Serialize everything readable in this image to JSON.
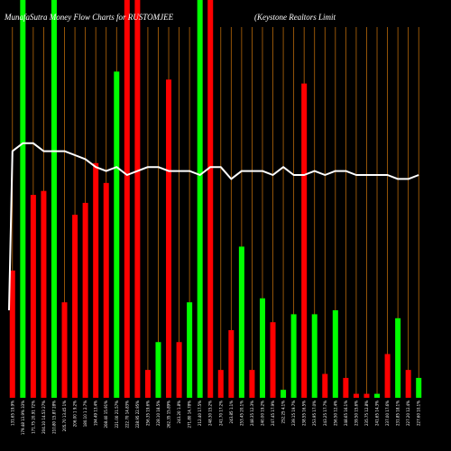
{
  "chart_data": {
    "type": "bar",
    "title": "MunafaSutra  Money Flow  Charts for RUSTOMJEE",
    "subtitle": "(Keystone   Realtors Limit",
    "ylim": [
      0,
      100
    ],
    "grid": "vertical",
    "line_series": {
      "name": "",
      "color": "#ffffff",
      "values": [
        62,
        64,
        64,
        62,
        62,
        62,
        61,
        60,
        58,
        57,
        58,
        56,
        57,
        58,
        58,
        57,
        57,
        57,
        56,
        58,
        58,
        55,
        57,
        57,
        57,
        56,
        58,
        56,
        56,
        57,
        56,
        57,
        57,
        56,
        56,
        56,
        56,
        55,
        55,
        56
      ]
    },
    "bars": [
      {
        "value": 32,
        "color": "red",
        "label": "131.65 19.9%"
      },
      {
        "value": 100,
        "color": "green",
        "label": "179.48 13.9% 33%"
      },
      {
        "value": 51,
        "color": "red",
        "label": "171.75 20.91 72%"
      },
      {
        "value": 52,
        "color": "red",
        "label": "204.10 14.53 27%"
      },
      {
        "value": 100,
        "color": "green",
        "label": "210.80 15.87 28%"
      },
      {
        "value": 24,
        "color": "red",
        "label": "205.70 13.45 1%"
      },
      {
        "value": 46,
        "color": "red",
        "label": "206.00 1 9.2%"
      },
      {
        "value": 49,
        "color": "red",
        "label": "180.10 1 2.7%"
      },
      {
        "value": 59,
        "color": "red",
        "label": "194.49 13.4%"
      },
      {
        "value": 54,
        "color": "red",
        "label": "208.40 15.91%"
      },
      {
        "value": 82,
        "color": "green",
        "label": "221.00 21.57%"
      },
      {
        "value": 100,
        "color": "red",
        "label": "222.70 14.83%"
      },
      {
        "value": 100,
        "color": "red",
        "label": "228.95 22.95%"
      },
      {
        "value": 7,
        "color": "red",
        "label": "256.35 19.6%"
      },
      {
        "value": 14,
        "color": "green",
        "label": "228.10 18.5%"
      },
      {
        "value": 80,
        "color": "red",
        "label": "262.35 15.89%"
      },
      {
        "value": 14,
        "color": "red",
        "label": "243.20 1.8%"
      },
      {
        "value": 24,
        "color": "green",
        "label": "271.80 14.78%"
      },
      {
        "value": 100,
        "color": "green",
        "label": "212.40 17.5%"
      },
      {
        "value": 100,
        "color": "red",
        "label": "248.30 15.2%"
      },
      {
        "value": 7,
        "color": "red",
        "label": "241.70 17.2%"
      },
      {
        "value": 17,
        "color": "red",
        "label": "243.85 1.1%"
      },
      {
        "value": 38,
        "color": "green",
        "label": "253.45 20.1%"
      },
      {
        "value": 7,
        "color": "red",
        "label": "248.35 12.3%"
      },
      {
        "value": 25,
        "color": "green",
        "label": "240.00 19.2%"
      },
      {
        "value": 19,
        "color": "red",
        "label": "247.45 17.9%"
      },
      {
        "value": 2,
        "color": "green",
        "label": "252.25 4.1%"
      },
      {
        "value": 21,
        "color": "green",
        "label": "239.15 19.7%"
      },
      {
        "value": 79,
        "color": "red",
        "label": "238.55 16.5%"
      },
      {
        "value": 21,
        "color": "green",
        "label": "253.95 17.0%"
      },
      {
        "value": 6,
        "color": "red",
        "label": "243.25 17.7%"
      },
      {
        "value": 22,
        "color": "green",
        "label": "256.50 12.4%"
      },
      {
        "value": 5,
        "color": "red",
        "label": "248.65 16.1%"
      },
      {
        "value": 1,
        "color": "red",
        "label": "239.50 15.6%"
      },
      {
        "value": 1,
        "color": "red",
        "label": "235.75 12.8%"
      },
      {
        "value": 1,
        "color": "green",
        "label": "241.65 14.3%"
      },
      {
        "value": 11,
        "color": "red",
        "label": "237.00 17.6%"
      },
      {
        "value": 20,
        "color": "green",
        "label": "231.85 18.1%"
      },
      {
        "value": 7,
        "color": "red",
        "label": "227.20 12.4%"
      },
      {
        "value": 5,
        "color": "green",
        "label": "227.60 10.1%"
      }
    ]
  },
  "colors": {
    "background": "#000000",
    "grid": "#b8690a",
    "bar_red": "#ff0000",
    "bar_green": "#00ff00",
    "line": "#ffffff"
  }
}
